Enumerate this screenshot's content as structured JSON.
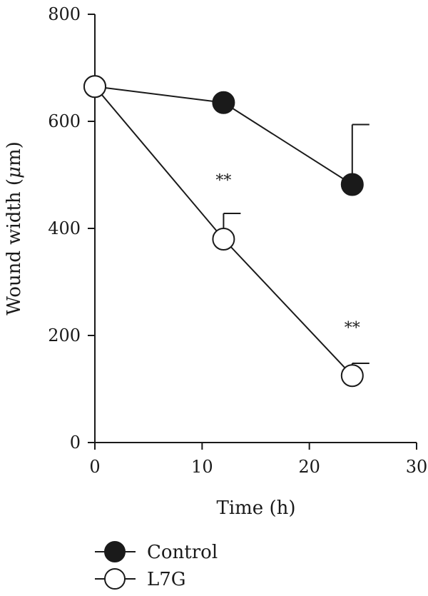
{
  "chart_data": {
    "type": "line",
    "xlabel": "Time (h)",
    "ylabel_prefix": "Wound width (",
    "ylabel_unit_symbol": "μ",
    "ylabel_suffix": "m)",
    "xlim": [
      0,
      30
    ],
    "ylim": [
      0,
      800
    ],
    "xticks": [
      0,
      10,
      20,
      30
    ],
    "yticks": [
      0,
      200,
      400,
      600,
      800
    ],
    "grid": false,
    "legend_position": "bottom-left",
    "series": [
      {
        "name": "Control",
        "marker": "filled-circle",
        "color": "#1a1a1a",
        "x": [
          0,
          12,
          24
        ],
        "y": [
          665,
          635,
          482
        ],
        "error_upper": [
          0,
          0,
          112
        ]
      },
      {
        "name": "L7G",
        "marker": "open-circle",
        "color": "#1a1a1a",
        "x": [
          0,
          12,
          24
        ],
        "y": [
          665,
          380,
          125
        ],
        "error_upper": [
          0,
          48,
          23
        ]
      }
    ],
    "annotations": [
      {
        "text": "**",
        "x": 12,
        "y": 480
      },
      {
        "text": "**",
        "x": 24,
        "y": 205
      }
    ]
  }
}
